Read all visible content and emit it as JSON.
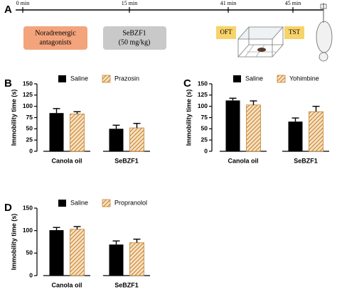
{
  "timeline": {
    "panel": "A",
    "times": [
      "0 min",
      "15 min",
      "41 min",
      "45 min"
    ],
    "boxes": [
      [
        "Noradrenergic",
        "antagonists"
      ],
      [
        "SeBZF1",
        "(50 mg/kg)"
      ],
      [
        "OFT"
      ],
      [
        "TST"
      ]
    ]
  },
  "chart_data": [
    {
      "type": "bar",
      "panel": "B",
      "ylabel": "Immobility time (s)",
      "categories": [
        "Canola oil",
        "SeBZF1"
      ],
      "series": [
        {
          "name": "Saline",
          "color": "#000000",
          "values": [
            85,
            50
          ],
          "errors": [
            10,
            8
          ]
        },
        {
          "name": "Prazosin",
          "color": "#c9822e",
          "pattern": "hatch",
          "values": [
            83,
            52
          ],
          "errors": [
            5,
            10
          ]
        }
      ],
      "ylim": [
        0,
        150
      ],
      "yticks": [
        0,
        25,
        50,
        75,
        100,
        125,
        150
      ]
    },
    {
      "type": "bar",
      "panel": "C",
      "ylabel": "Immobility time (s)",
      "categories": [
        "Canola oil",
        "SeBZF1"
      ],
      "series": [
        {
          "name": "Saline",
          "color": "#000000",
          "values": [
            113,
            66
          ],
          "errors": [
            5,
            8
          ]
        },
        {
          "name": "Yohimbine",
          "color": "#c9822e",
          "pattern": "hatch",
          "values": [
            103,
            88
          ],
          "errors": [
            9,
            12
          ]
        }
      ],
      "ylim": [
        0,
        150
      ],
      "yticks": [
        0,
        25,
        50,
        75,
        100,
        125,
        150
      ]
    },
    {
      "type": "bar",
      "panel": "D",
      "ylabel": "Immobility time (s)",
      "categories": [
        "Canola oil",
        "SeBZF1"
      ],
      "series": [
        {
          "name": "Saline",
          "color": "#000000",
          "values": [
            101,
            69
          ],
          "errors": [
            6,
            8
          ]
        },
        {
          "name": "Propranolol",
          "color": "#c9822e",
          "pattern": "hatch",
          "values": [
            103,
            73
          ],
          "errors": [
            6,
            8
          ]
        }
      ],
      "ylim": [
        0,
        150
      ],
      "yticks": [
        0,
        50,
        100,
        150
      ]
    }
  ]
}
